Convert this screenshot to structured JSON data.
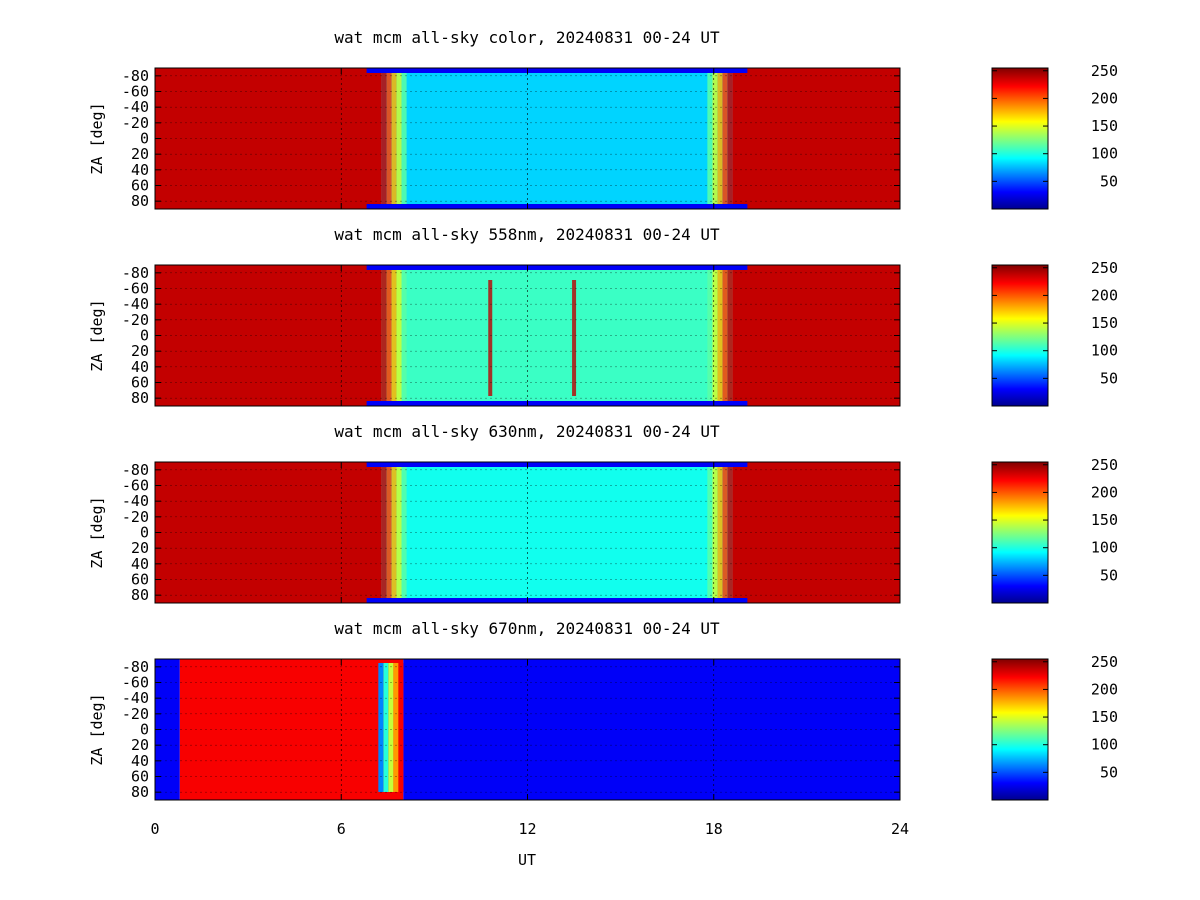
{
  "figure": {
    "xlabel": "UT",
    "ylabel": "ZA [deg]",
    "x_ticks": [
      "0",
      "6",
      "12",
      "18",
      "24"
    ],
    "y_ticks": [
      "-80",
      "-60",
      "-40",
      "-20",
      "0",
      "20",
      "40",
      "60",
      "80"
    ],
    "colorbar_ticks": [
      "250",
      "200",
      "150",
      "100",
      "50"
    ]
  },
  "chart_data": [
    {
      "type": "heatmap",
      "title": "wat mcm all-sky color, 20240831 00-24 UT",
      "xlabel": "",
      "ylabel": "ZA [deg]",
      "xlim": [
        0,
        24
      ],
      "ylim": [
        -90,
        90
      ],
      "clim": [
        0,
        255
      ],
      "colormap": "jet",
      "grid": true,
      "background_value": 238,
      "segments": [
        {
          "ut_start": 0,
          "ut_end": 7.3,
          "value": 238
        },
        {
          "ut_start": 7.3,
          "ut_end": 18.6,
          "value": 85
        },
        {
          "ut_start": 18.6,
          "ut_end": 24,
          "value": 238
        }
      ],
      "notes_visible": "saturated before ~7.5 UT and after ~18.5 UT; night-time values ~60-110"
    },
    {
      "type": "heatmap",
      "title": "wat mcm all-sky 558nm, 20240831 00-24 UT",
      "xlabel": "",
      "ylabel": "ZA [deg]",
      "xlim": [
        0,
        24
      ],
      "ylim": [
        -90,
        90
      ],
      "clim": [
        0,
        255
      ],
      "colormap": "jet",
      "grid": true,
      "segments": [
        {
          "ut_start": 0,
          "ut_end": 7.3,
          "value": 238
        },
        {
          "ut_start": 7.3,
          "ut_end": 18.6,
          "value": 110
        },
        {
          "ut_start": 18.6,
          "ut_end": 24,
          "value": 238
        }
      ],
      "features": [
        {
          "ut": 10.8,
          "value": 240
        },
        {
          "ut": 13.5,
          "value": 240
        }
      ]
    },
    {
      "type": "heatmap",
      "title": "wat mcm all-sky 630nm, 20240831 00-24 UT",
      "xlabel": "",
      "ylabel": "ZA [deg]",
      "xlim": [
        0,
        24
      ],
      "ylim": [
        -90,
        90
      ],
      "clim": [
        0,
        255
      ],
      "colormap": "jet",
      "grid": true,
      "segments": [
        {
          "ut_start": 0,
          "ut_end": 7.3,
          "value": 238
        },
        {
          "ut_start": 7.3,
          "ut_end": 18.6,
          "value": 100
        },
        {
          "ut_start": 18.6,
          "ut_end": 24,
          "value": 238
        }
      ]
    },
    {
      "type": "heatmap",
      "title": "wat mcm all-sky 670nm, 20240831 00-24 UT",
      "xlabel": "UT",
      "ylabel": "ZA [deg]",
      "xlim": [
        0,
        24
      ],
      "ylim": [
        -90,
        90
      ],
      "clim": [
        0,
        255
      ],
      "colormap": "jet",
      "grid": true,
      "segments": [
        {
          "ut_start": 0,
          "ut_end": 0.8,
          "value": 30
        },
        {
          "ut_start": 0.8,
          "ut_end": 8.0,
          "value": 225
        },
        {
          "ut_start": 8.0,
          "ut_end": 24,
          "value": 30
        }
      ]
    }
  ]
}
